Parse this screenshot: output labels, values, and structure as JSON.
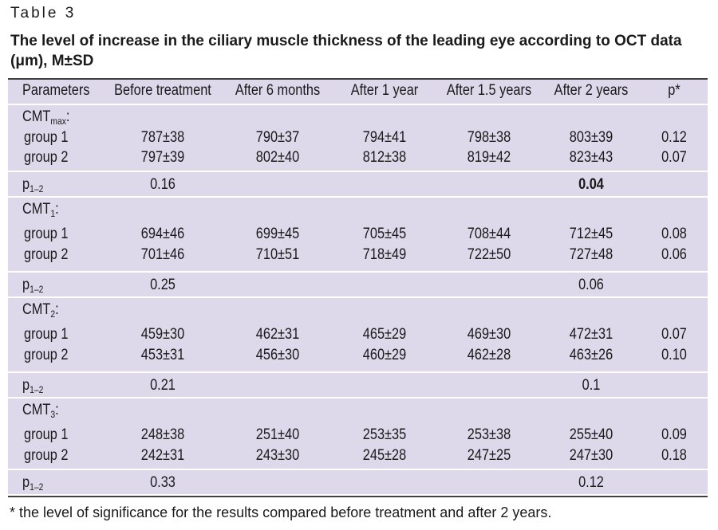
{
  "table_label": "Table 3",
  "title": "The level of increase in the ciliary muscle thickness of the leading eye according to OCT data (μm), M±SD",
  "headers": [
    "Parameters",
    "Before treatment",
    "After 6 months",
    "After 1 year",
    "After 1.5 years",
    "After 2 years",
    "p*"
  ],
  "sections": [
    {
      "name_base": "CMT",
      "name_sub": "max",
      "name_suffix": ":",
      "rows": [
        {
          "label": "group 1",
          "values": [
            "787±38",
            "790±37",
            "794±41",
            "798±38",
            "803±39"
          ],
          "p": "0.12"
        },
        {
          "label": "group 2",
          "values": [
            "797±39",
            "802±40",
            "812±38",
            "819±42",
            "823±43"
          ],
          "p": "0.07"
        }
      ],
      "p12": {
        "label_base": "p",
        "label_sub": "1–2",
        "before": "0.16",
        "after2": "0.04",
        "after2_bold": true
      }
    },
    {
      "name_base": "CMT",
      "name_sub": "1",
      "name_suffix": ":",
      "rows": [
        {
          "label": "group 1",
          "values": [
            "694±46",
            "699±45",
            "705±45",
            "708±44",
            "712±45"
          ],
          "p": "0.08"
        },
        {
          "label": "group 2",
          "values": [
            "701±46",
            "710±51",
            "718±49",
            "722±50",
            "727±48"
          ],
          "p": "0.06"
        }
      ],
      "p12": {
        "label_base": "p",
        "label_sub": "1–2",
        "before": "0.25",
        "after2": "0.06",
        "after2_bold": false
      }
    },
    {
      "name_base": "CMT",
      "name_sub": "2",
      "name_suffix": ":",
      "rows": [
        {
          "label": "group 1",
          "values": [
            "459±30",
            "462±31",
            "465±29",
            "469±30",
            "472±31"
          ],
          "p": "0.07"
        },
        {
          "label": "group 2",
          "values": [
            "453±31",
            "456±30",
            "460±29",
            "462±28",
            "463±26"
          ],
          "p": "0.10"
        }
      ],
      "p12": {
        "label_base": "p",
        "label_sub": "1–2",
        "before": "0.21",
        "after2": "0.1",
        "after2_bold": false
      }
    },
    {
      "name_base": "CMT",
      "name_sub": "3",
      "name_suffix": ":",
      "rows": [
        {
          "label": "group 1",
          "values": [
            "248±38",
            "251±40",
            "253±35",
            "253±38",
            "255±40"
          ],
          "p": "0.09"
        },
        {
          "label": "group 2",
          "values": [
            "242±31",
            "243±30",
            "245±28",
            "247±25",
            "247±30"
          ],
          "p": "0.18"
        }
      ],
      "p12": {
        "label_base": "p",
        "label_sub": "1–2",
        "before": "0.33",
        "after2": "0.12",
        "after2_bold": false
      }
    }
  ],
  "footnote": "* the level of significance for the results compared before treatment and after 2 years."
}
